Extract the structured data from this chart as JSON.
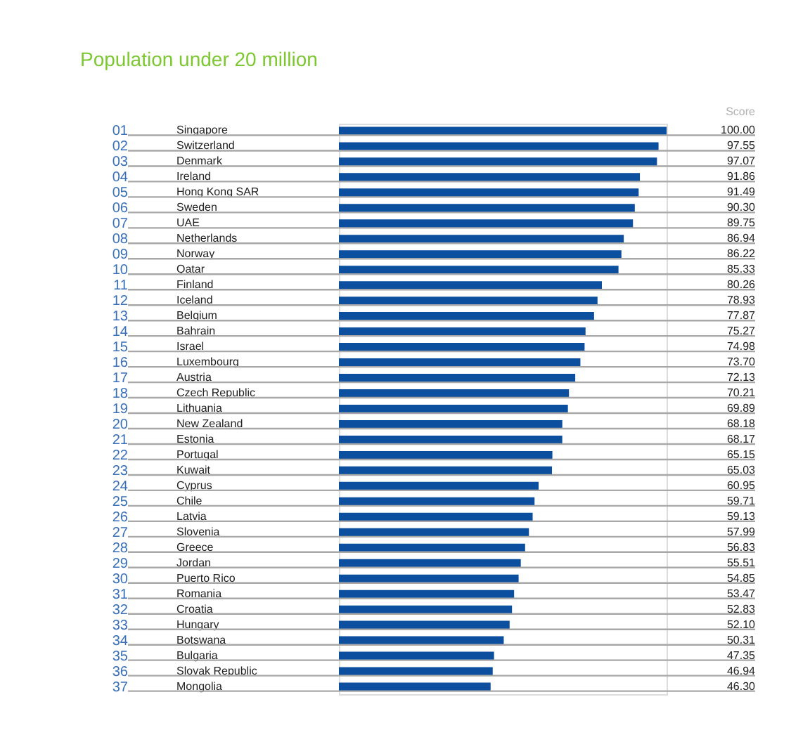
{
  "chart_data": {
    "type": "bar",
    "orientation": "horizontal",
    "title": "Population under 20 million",
    "categories": [
      "Singapore",
      "Switzerland",
      "Denmark",
      "Ireland",
      "Hong Kong SAR",
      "Sweden",
      "UAE",
      "Netherlands",
      "Norway",
      "Qatar",
      "Finland",
      "Iceland",
      "Belgium",
      "Bahrain",
      "Israel",
      "Luxembourg",
      "Austria",
      "Czech Republic",
      "Lithuania",
      "New Zealand",
      "Estonia",
      "Portugal",
      "Kuwait",
      "Cyprus",
      "Chile",
      "Latvia",
      "Slovenia",
      "Greece",
      "Jordan",
      "Puerto Rico",
      "Romania",
      "Croatia",
      "Hungary",
      "Botswana",
      "Bulgaria",
      "Slovak Republic",
      "Mongolia"
    ],
    "values": [
      100.0,
      97.55,
      97.07,
      91.86,
      91.49,
      90.3,
      89.75,
      86.94,
      86.22,
      85.33,
      80.26,
      78.93,
      77.87,
      75.27,
      74.98,
      73.7,
      72.13,
      70.21,
      69.89,
      68.18,
      68.17,
      65.15,
      65.03,
      60.95,
      59.71,
      59.13,
      57.99,
      56.83,
      55.51,
      54.85,
      53.47,
      52.83,
      52.1,
      50.31,
      47.35,
      46.94,
      46.3
    ],
    "value_labels": [
      "100.00",
      "97.55",
      "97.07",
      "91.86",
      "91.49",
      "90.30",
      "89.75",
      "86.94",
      "86.22",
      "85.33",
      "80.26",
      "78.93",
      "77.87",
      "75.27",
      "74.98",
      "73.70",
      "72.13",
      "70.21",
      "69.89",
      "68.18",
      "68.17",
      "65.15",
      "65.03",
      "60.95",
      "59.71",
      "59.13",
      "57.99",
      "56.83",
      "55.51",
      "54.85",
      "53.47",
      "52.83",
      "52.10",
      "50.31",
      "47.35",
      "46.94",
      "46.30"
    ],
    "color": "#0b4f9e",
    "xlim": [
      0,
      100
    ],
    "tick_labels": "y",
    "grid": "y",
    "annotations": [
      "Score",
      "01",
      "02",
      "03",
      "04",
      "05",
      "06",
      "07",
      "08",
      "09",
      "10",
      "11",
      "12",
      "13",
      "14",
      "15",
      "16",
      "17",
      "18",
      "19",
      "20",
      "21",
      "22",
      "23",
      "24",
      "25",
      "26",
      "27",
      "28",
      "29",
      "30",
      "31",
      "32",
      "33",
      "34",
      "35",
      "36",
      "37"
    ]
  }
}
